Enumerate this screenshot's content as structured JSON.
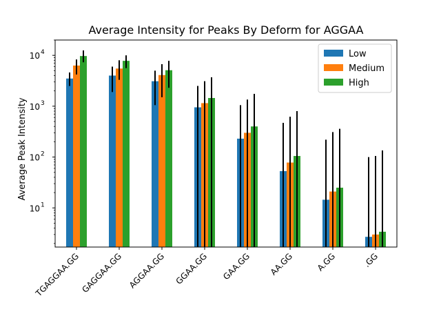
{
  "chart_data": {
    "type": "bar",
    "title": "Average Intensity for Peaks By Deform for AGGAA",
    "xlabel": "",
    "ylabel": "Average Peak Intensity",
    "yscale": "log",
    "ylim": [
      1.7,
      20000
    ],
    "y_ticks": [
      {
        "value": 10,
        "base": "10",
        "exp": "1"
      },
      {
        "value": 100,
        "base": "10",
        "exp": "2"
      },
      {
        "value": 1000,
        "base": "10",
        "exp": "3"
      },
      {
        "value": 10000,
        "base": "10",
        "exp": "4"
      }
    ],
    "categories": [
      "TGAGGAA.GG",
      "GAGGAA.GG",
      "AGGAA.GG",
      "GGAA.GG",
      "GAA.GG",
      "AA.GG",
      "A.GG",
      ".GG"
    ],
    "series": [
      {
        "name": "Low",
        "color": "#1f77b4",
        "values": [
          3500,
          4000,
          3100,
          950,
          230,
          53,
          14.5,
          2.7
        ],
        "err_low": [
          2500,
          1900,
          1050,
          1.7,
          1.7,
          1.7,
          1.7,
          1.7
        ],
        "err_high": [
          4600,
          6000,
          5000,
          2500,
          1050,
          470,
          220,
          100
        ]
      },
      {
        "name": "Medium",
        "color": "#ff7f0e",
        "values": [
          6300,
          5500,
          4100,
          1150,
          300,
          78,
          21,
          3.0
        ],
        "err_low": [
          4200,
          3300,
          1500,
          1.7,
          1.7,
          1.7,
          1.7,
          1.7
        ],
        "err_high": [
          8300,
          8000,
          6700,
          3100,
          1350,
          620,
          310,
          105
        ]
      },
      {
        "name": "High",
        "color": "#2ca02c",
        "values": [
          9700,
          7800,
          5100,
          1450,
          400,
          105,
          25,
          3.4
        ],
        "err_low": [
          7300,
          5600,
          2300,
          1.7,
          1.7,
          1.7,
          1.7,
          1.7
        ],
        "err_high": [
          12500,
          10000,
          7800,
          3700,
          1750,
          800,
          360,
          135
        ]
      }
    ],
    "legend_position": "top-right",
    "grid": false
  }
}
